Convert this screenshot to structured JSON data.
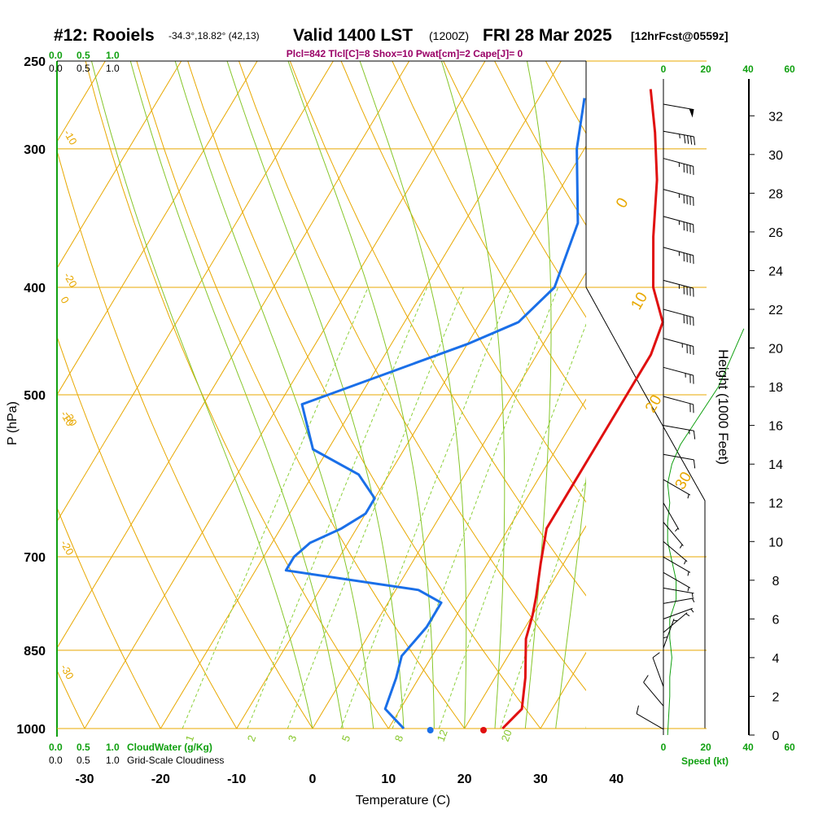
{
  "header": {
    "station": "#12: Rooiels",
    "coords": "-34.3°,18.82° (42,13)",
    "valid": "Valid 1400 LST",
    "zulu": "(1200Z)",
    "date": "FRI 28 Mar 2025",
    "fcst": "[12hrFcst@0559z]",
    "indices": "Plcl=842 Tlcl[C]=8 Shox=10 Pwat[cm]=2 Cape[J]= 0"
  },
  "colors": {
    "temperature": "#e01010",
    "dewpoint": "#1a6fe8",
    "isotherm": "#e8a800",
    "dry_adiabat": "#e8a800",
    "moist_adiabat": "#86c62a",
    "mixing_ratio": "#8cd03a",
    "green_label": "#10a010",
    "indices": "#990066"
  },
  "legend": {
    "cloudwater_label": "CloudWater (g/Kg)",
    "cloudiness_label": "Grid-Scale Cloudiness",
    "scale_ticks": [
      "0.0",
      "0.5",
      "1.0"
    ],
    "speed_label": "Speed (kt)",
    "speed_ticks": [
      "0",
      "20",
      "40",
      "60"
    ]
  },
  "chart_data": {
    "type": "line",
    "title": "Skew-T log-P sounding",
    "xlabel": "Temperature (C)",
    "ylabel": "P (hPa)",
    "right_ylabel": "Height (1000 Feet)",
    "x_ticks": [
      "-30",
      "-20",
      "-10",
      "0",
      "10",
      "20",
      "30",
      "40"
    ],
    "p_ticks": [
      "250",
      "300",
      "400",
      "500",
      "700",
      "850",
      "1000"
    ],
    "height_ticks": [
      "0",
      "2",
      "4",
      "6",
      "8",
      "10",
      "12",
      "14",
      "16",
      "18",
      "20",
      "22",
      "24",
      "26",
      "28",
      "30",
      "32"
    ],
    "xlim": [
      -34,
      36
    ],
    "plim": [
      1000,
      250
    ],
    "temperature": {
      "name": "Temperature",
      "points": [
        [
          25,
          1000
        ],
        [
          26,
          960
        ],
        [
          24,
          900
        ],
        [
          21,
          830
        ],
        [
          20,
          790
        ],
        [
          19,
          760
        ],
        [
          17,
          710
        ],
        [
          15,
          660
        ],
        [
          15,
          620
        ],
        [
          15,
          550
        ],
        [
          15,
          500
        ],
        [
          15,
          460
        ],
        [
          14,
          430
        ],
        [
          10,
          400
        ],
        [
          6,
          360
        ],
        [
          2,
          320
        ],
        [
          -2,
          290
        ],
        [
          -6,
          265
        ]
      ]
    },
    "dewpoint": {
      "name": "Dewpoint",
      "points": [
        [
          12,
          1000
        ],
        [
          8,
          960
        ],
        [
          7,
          900
        ],
        [
          6,
          860
        ],
        [
          7,
          810
        ],
        [
          7,
          770
        ],
        [
          3,
          750
        ],
        [
          -16,
          720
        ],
        [
          -16,
          700
        ],
        [
          -15,
          680
        ],
        [
          -12,
          660
        ],
        [
          -10,
          640
        ],
        [
          -10,
          620
        ],
        [
          -14,
          590
        ],
        [
          -22,
          560
        ],
        [
          -27,
          510
        ],
        [
          -10,
          450
        ],
        [
          -5,
          430
        ],
        [
          -3,
          400
        ],
        [
          -5,
          350
        ],
        [
          -11,
          300
        ],
        [
          -14,
          270
        ]
      ]
    },
    "surface_dewpoint_dot": 15.5,
    "surface_temperature_dot": 22.5,
    "isotherm_labels": [
      "0",
      "10",
      "20",
      "30",
      "-10",
      "-20",
      "-30"
    ],
    "mixing_ratio_labels": [
      "1",
      "2",
      "3",
      "5",
      "8",
      "12",
      "20"
    ],
    "wind_speed_profile": [
      [
        2,
        0
      ],
      [
        3,
        2
      ],
      [
        3,
        3
      ],
      [
        4,
        4
      ],
      [
        3,
        5
      ],
      [
        3,
        6
      ],
      [
        6,
        7
      ],
      [
        6,
        8
      ],
      [
        4,
        9
      ],
      [
        2,
        10
      ],
      [
        2,
        11
      ],
      [
        3,
        12
      ],
      [
        2,
        13
      ],
      [
        4,
        14
      ],
      [
        8,
        15
      ],
      [
        14,
        16
      ],
      [
        20,
        17
      ],
      [
        26,
        18
      ],
      [
        30,
        19
      ],
      [
        38,
        21
      ]
    ],
    "wind_barbs": [
      {
        "h": 0.3,
        "dir": 120,
        "spd": 10
      },
      {
        "h": 1.5,
        "dir": 140,
        "spd": 10
      },
      {
        "h": 2.5,
        "dir": 160,
        "spd": 10
      },
      {
        "h": 3.5,
        "dir": 180,
        "spd": 5
      },
      {
        "h": 4.5,
        "dir": 200,
        "spd": 5
      },
      {
        "h": 5.3,
        "dir": 230,
        "spd": 5
      },
      {
        "h": 6.0,
        "dir": 250,
        "spd": 5
      },
      {
        "h": 6.8,
        "dir": 260,
        "spd": 5
      },
      {
        "h": 7.6,
        "dir": 280,
        "spd": 5
      },
      {
        "h": 8.4,
        "dir": 300,
        "spd": 5
      },
      {
        "h": 9.2,
        "dir": 300,
        "spd": 5
      },
      {
        "h": 10.0,
        "dir": 310,
        "spd": 5
      },
      {
        "h": 11.0,
        "dir": 320,
        "spd": 5
      },
      {
        "h": 12.0,
        "dir": 330,
        "spd": 5
      },
      {
        "h": 13.2,
        "dir": 300,
        "spd": 5
      },
      {
        "h": 14.5,
        "dir": 280,
        "spd": 10
      },
      {
        "h": 16.0,
        "dir": 280,
        "spd": 15
      },
      {
        "h": 17.5,
        "dir": 285,
        "spd": 20
      },
      {
        "h": 19.0,
        "dir": 285,
        "spd": 25
      },
      {
        "h": 20.5,
        "dir": 285,
        "spd": 35
      },
      {
        "h": 22.0,
        "dir": 285,
        "spd": 40
      },
      {
        "h": 23.5,
        "dir": 285,
        "spd": 45
      },
      {
        "h": 25.2,
        "dir": 285,
        "spd": 45
      },
      {
        "h": 26.8,
        "dir": 285,
        "spd": 45
      },
      {
        "h": 28.2,
        "dir": 285,
        "spd": 45
      },
      {
        "h": 29.8,
        "dir": 285,
        "spd": 45
      },
      {
        "h": 31.2,
        "dir": 280,
        "spd": 45
      },
      {
        "h": 32.6,
        "dir": 280,
        "spd": 50
      }
    ]
  }
}
